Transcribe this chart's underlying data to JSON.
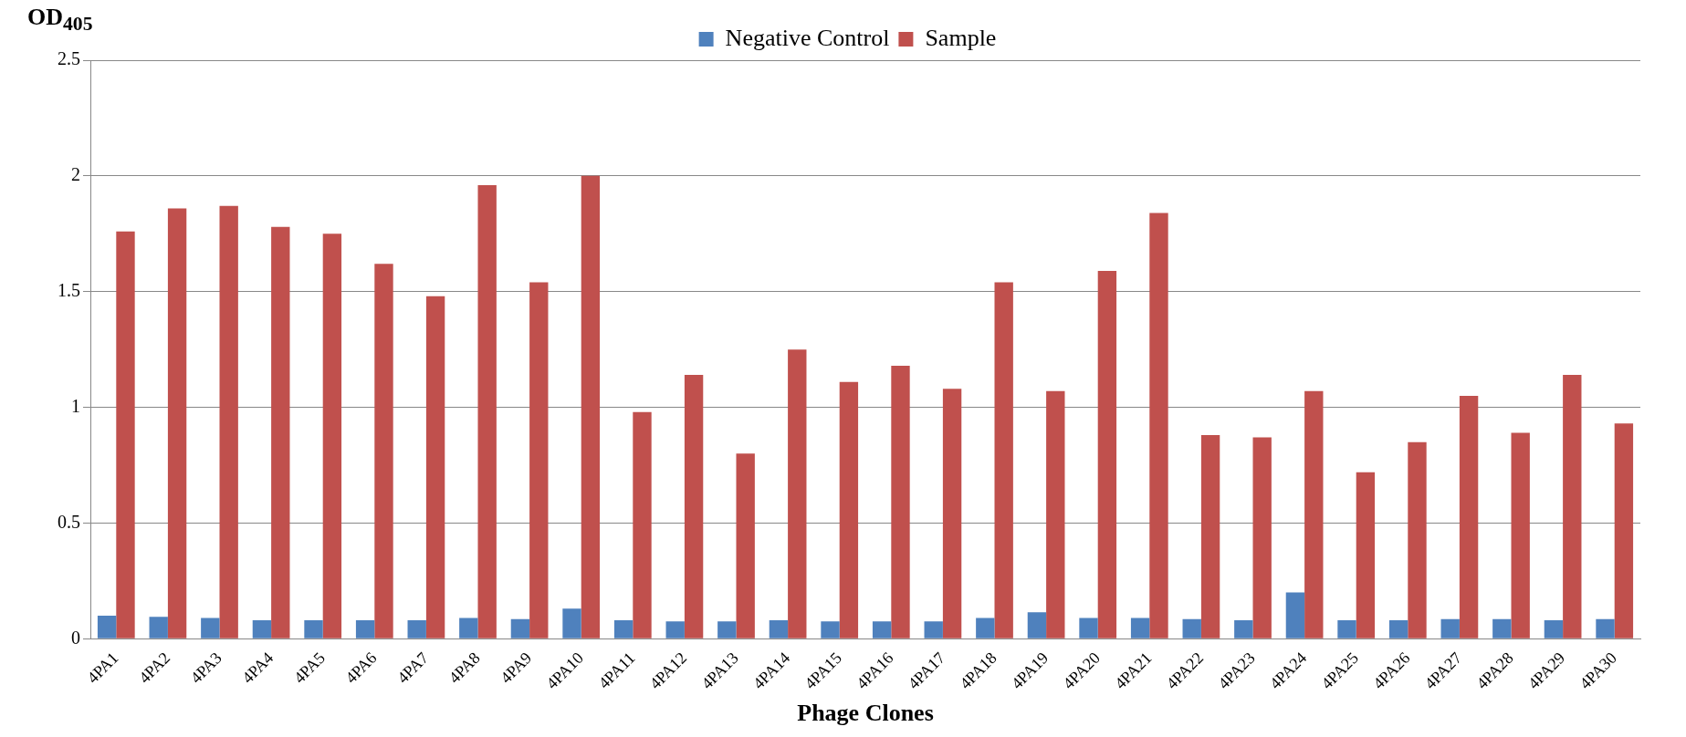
{
  "chart_data": {
    "type": "bar",
    "xlabel": "Phage Clones",
    "ylabel": "OD$_{405}$",
    "categories": [
      "4PA1",
      "4PA2",
      "4PA3",
      "4PA4",
      "4PA5",
      "4PA6",
      "4PA7",
      "4PA8",
      "4PA9",
      "4PA10",
      "4PA11",
      "4PA12",
      "4PA13",
      "4PA14",
      "4PA15",
      "4PA16",
      "4PA17",
      "4PA18",
      "4PA19",
      "4PA20",
      "4PA21",
      "4PA22",
      "4PA23",
      "4PA24",
      "4PA25",
      "4PA26",
      "4PA27",
      "4PA28",
      "4PA29",
      "4PA30"
    ],
    "series": [
      {
        "name": "Negative Control",
        "color": "#4f81bd",
        "values": [
          0.1,
          0.095,
          0.09,
          0.08,
          0.08,
          0.08,
          0.08,
          0.09,
          0.085,
          0.13,
          0.08,
          0.075,
          0.075,
          0.08,
          0.075,
          0.075,
          0.075,
          0.09,
          0.115,
          0.09,
          0.09,
          0.085,
          0.08,
          0.2,
          0.08,
          0.08,
          0.085,
          0.085,
          0.08,
          0.085
        ]
      },
      {
        "name": "Sample",
        "color": "#c0504d",
        "values": [
          1.76,
          1.86,
          1.87,
          1.78,
          1.75,
          1.62,
          1.48,
          1.96,
          1.54,
          2.0,
          0.98,
          1.14,
          0.8,
          1.25,
          1.11,
          1.18,
          1.08,
          1.54,
          1.07,
          1.59,
          1.84,
          0.88,
          0.87,
          1.07,
          0.72,
          0.85,
          1.05,
          0.89,
          1.14,
          0.93
        ]
      }
    ],
    "ylim": [
      0,
      2.5
    ],
    "yticks": [
      0,
      0.5,
      1,
      1.5,
      2,
      2.5
    ],
    "grid": "y",
    "legend": "top"
  }
}
